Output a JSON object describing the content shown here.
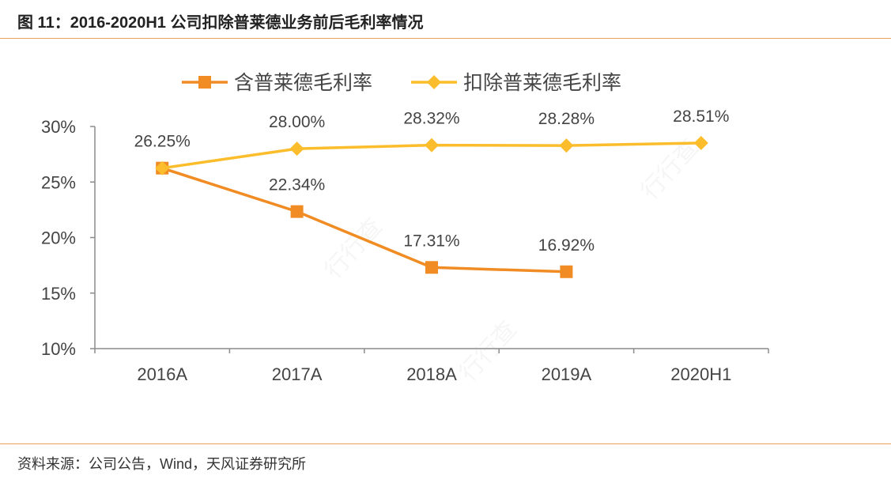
{
  "figure": {
    "title": "图 11：2016-2020H1 公司扣除普莱德业务前后毛利率情况",
    "source": "资料来源：公司公告，Wind，天风证券研究所"
  },
  "watermark": {
    "text": "行行查"
  },
  "chart_data": {
    "type": "line",
    "title": "",
    "xlabel": "",
    "ylabel": "",
    "categories": [
      "2016A",
      "2017A",
      "2018A",
      "2019A",
      "2020H1"
    ],
    "y_ticks": [
      "10%",
      "15%",
      "20%",
      "25%",
      "30%"
    ],
    "ylim": [
      0.1,
      0.3
    ],
    "grid": false,
    "legend_position": "top-center",
    "series": [
      {
        "name": "含普莱德毛利率",
        "color": "#f08c23",
        "marker": "square",
        "values": [
          0.2625,
          0.2234,
          0.1731,
          0.1692,
          null
        ],
        "labels": [
          "",
          "22.34%",
          "17.31%",
          "16.92%",
          ""
        ]
      },
      {
        "name": "扣除普莱德毛利率",
        "color": "#fbbd2b",
        "marker": "diamond",
        "values": [
          0.2625,
          0.28,
          0.2832,
          0.2828,
          0.2851
        ],
        "labels": [
          "26.25%",
          "28.00%",
          "28.32%",
          "28.28%",
          "28.51%"
        ]
      }
    ]
  }
}
